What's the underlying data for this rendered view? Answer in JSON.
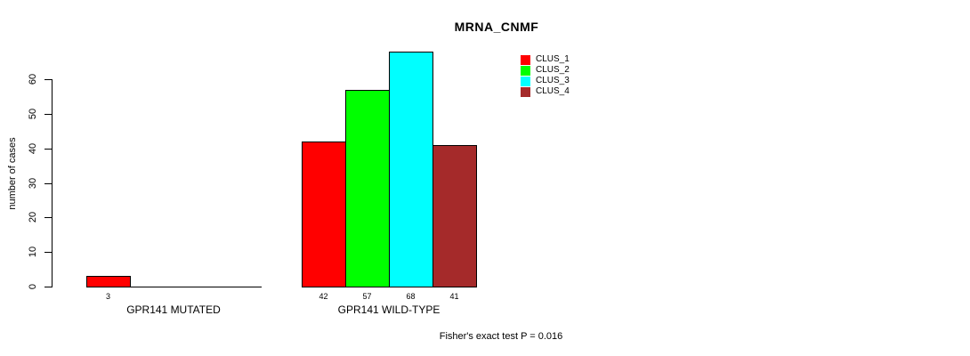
{
  "chart_data": {
    "type": "bar",
    "title": "MRNA_CNMF",
    "xlabel": "",
    "ylabel": "number of cases",
    "ylim": [
      0,
      60
    ],
    "yticks": [
      0,
      10,
      20,
      30,
      40,
      50,
      60
    ],
    "grid": false,
    "legend_position": "top-right",
    "categories": [
      "GPR141 MUTATED",
      "GPR141 WILD-TYPE"
    ],
    "series": [
      {
        "name": "CLUS_1",
        "color": "#FF0000",
        "values": [
          3,
          42
        ]
      },
      {
        "name": "CLUS_2",
        "color": "#00FF00",
        "values": [
          0,
          57
        ]
      },
      {
        "name": "CLUS_3",
        "color": "#00FFFF",
        "values": [
          0,
          68
        ]
      },
      {
        "name": "CLUS_4",
        "color": "#A52A2A",
        "values": [
          0,
          41
        ]
      }
    ],
    "bar_value_labels": [
      [
        "3",
        "",
        "",
        ""
      ],
      [
        "42",
        "57",
        "68",
        "41"
      ]
    ],
    "annotation": "Fisher's exact test P = 0.016",
    "axis_color": "#000000",
    "bar_border_color": "#000000",
    "background_color": "#FFFFFF"
  }
}
